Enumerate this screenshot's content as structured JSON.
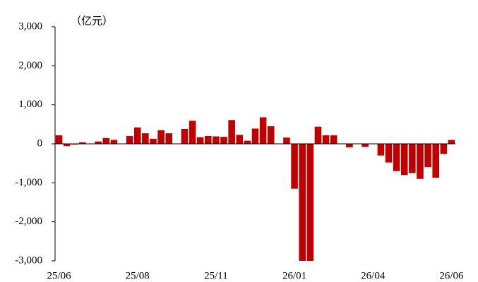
{
  "chart_data": {
    "type": "bar",
    "unit_label": "（亿元）",
    "categories": [
      "25/06",
      null,
      null,
      null,
      null,
      null,
      null,
      null,
      null,
      null,
      "25/08",
      null,
      null,
      null,
      null,
      null,
      null,
      null,
      null,
      null,
      "25/11",
      null,
      null,
      null,
      null,
      null,
      null,
      null,
      null,
      null,
      "26/01",
      null,
      null,
      null,
      null,
      null,
      null,
      null,
      null,
      null,
      "26/04",
      null,
      null,
      null,
      null,
      null,
      null,
      null,
      null,
      null,
      "26/06"
    ],
    "values": [
      220,
      -60,
      -20,
      40,
      0,
      60,
      150,
      100,
      0,
      200,
      420,
      270,
      130,
      350,
      270,
      0,
      380,
      590,
      170,
      200,
      190,
      180,
      610,
      230,
      80,
      390,
      680,
      450,
      0,
      160,
      -1150,
      -3000,
      -3000,
      440,
      220,
      220,
      0,
      -90,
      0,
      -80,
      0,
      -300,
      -480,
      -700,
      -800,
      -750,
      -900,
      -600,
      -870,
      -260,
      100
    ],
    "color": "#c00000",
    "ylim": [
      -3000,
      3000
    ],
    "yticks": [
      {
        "value": -3000,
        "label": "-3,000"
      },
      {
        "value": -2000,
        "label": "-2,000"
      },
      {
        "value": -1000,
        "label": "-1,000"
      },
      0,
      {
        "value": 1000,
        "label": "1,000"
      },
      {
        "value": 2000,
        "label": "2,000"
      },
      {
        "value": 3000,
        "label": "3,000"
      }
    ],
    "grid": false
  }
}
